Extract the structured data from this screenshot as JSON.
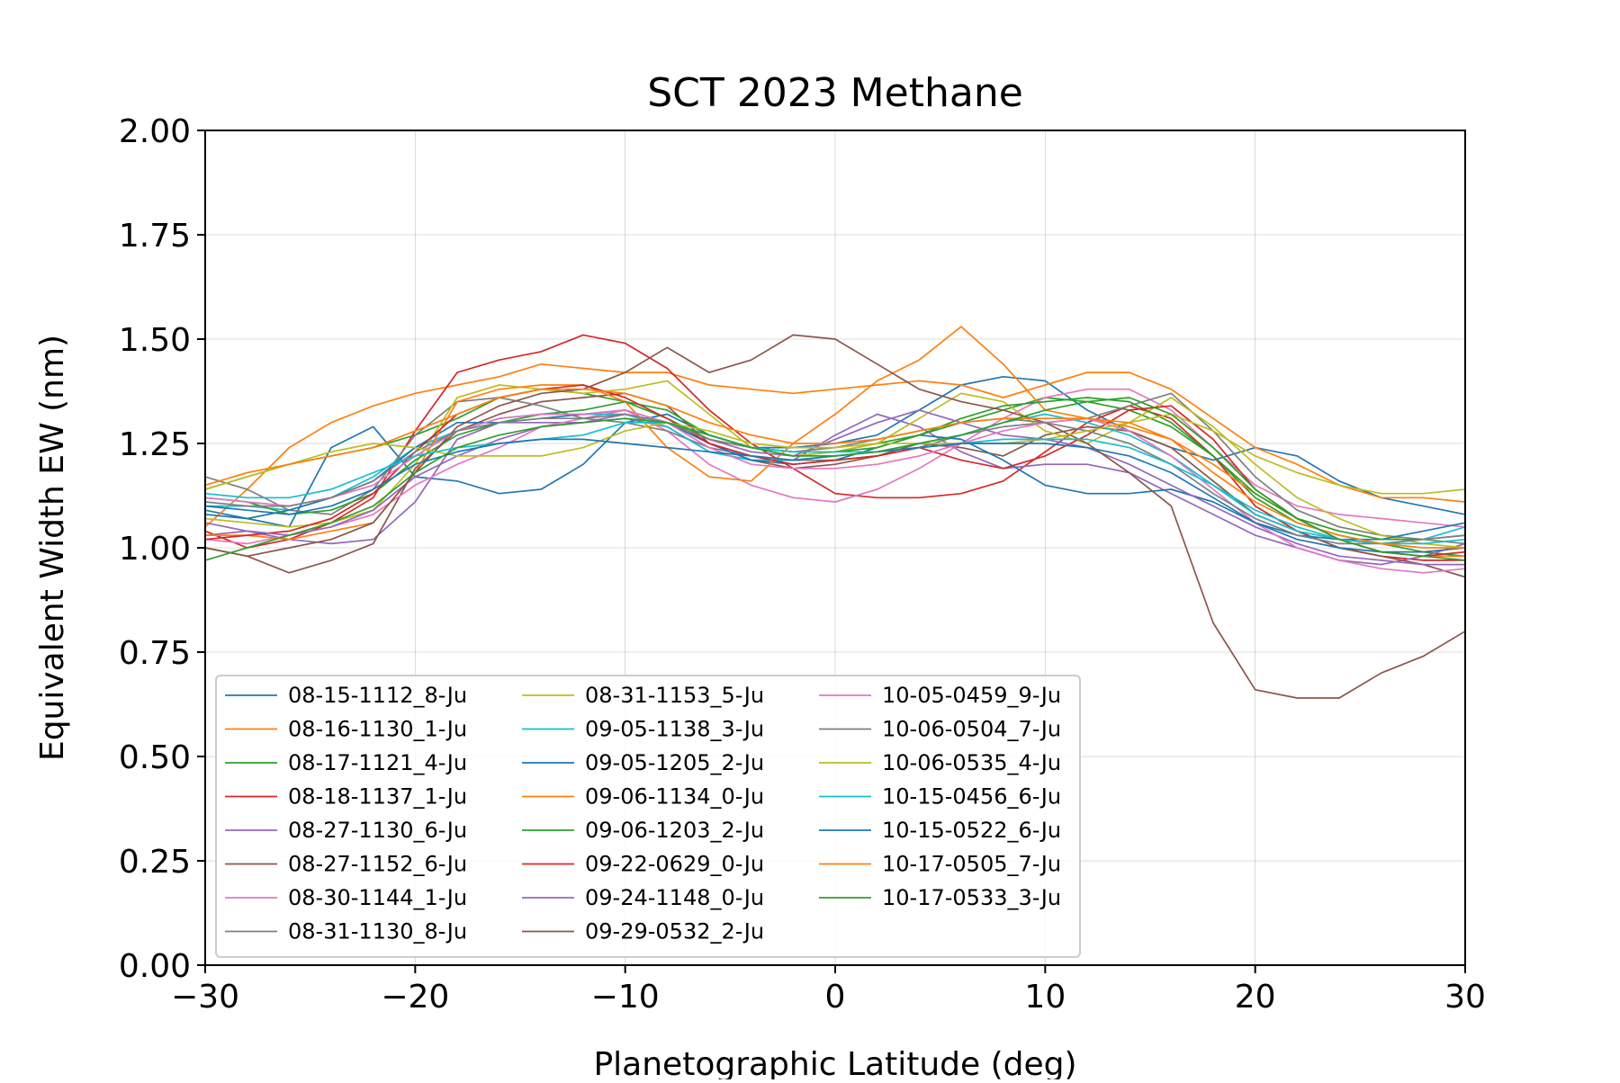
{
  "chart_data": {
    "type": "line",
    "title": "SCT 2023 Methane",
    "xlabel": "Planetographic Latitude (deg)",
    "ylabel": "Equivalent Width EW (nm)",
    "xlim": [
      -30,
      30
    ],
    "ylim": [
      0.0,
      2.0
    ],
    "xticks": [
      -30,
      -20,
      -10,
      0,
      10,
      20,
      30
    ],
    "xtick_labels": [
      "−30",
      "−20",
      "−10",
      "0",
      "10",
      "20",
      "30"
    ],
    "yticks": [
      0.0,
      0.25,
      0.5,
      0.75,
      1.0,
      1.25,
      1.5,
      1.75,
      2.0
    ],
    "ytick_labels": [
      "0.00",
      "0.25",
      "0.50",
      "0.75",
      "1.00",
      "1.25",
      "1.50",
      "1.75",
      "2.00"
    ],
    "grid": true,
    "legend_position": "lower-left",
    "legend_columns": 3,
    "x": [
      -30,
      -28,
      -26,
      -24,
      -22,
      -20,
      -18,
      -16,
      -14,
      -12,
      -10,
      -8,
      -6,
      -4,
      -2,
      0,
      2,
      4,
      6,
      8,
      10,
      12,
      14,
      16,
      18,
      20,
      22,
      24,
      26,
      28,
      30
    ],
    "series": [
      {
        "name": "08-15-1112_8-Ju",
        "color": "#1f77b4",
        "values": [
          1.09,
          1.07,
          1.05,
          1.24,
          1.29,
          1.17,
          1.16,
          1.13,
          1.14,
          1.2,
          1.3,
          1.32,
          1.27,
          1.24,
          1.24,
          1.25,
          1.27,
          1.33,
          1.39,
          1.41,
          1.4,
          1.33,
          1.28,
          1.24,
          1.21,
          1.24,
          1.22,
          1.16,
          1.12,
          1.1,
          1.08
        ]
      },
      {
        "name": "08-16-1130_1-Ju",
        "color": "#ff7f0e",
        "values": [
          1.05,
          1.14,
          1.24,
          1.3,
          1.34,
          1.37,
          1.39,
          1.41,
          1.44,
          1.43,
          1.42,
          1.42,
          1.39,
          1.38,
          1.37,
          1.38,
          1.39,
          1.4,
          1.39,
          1.36,
          1.39,
          1.42,
          1.42,
          1.38,
          1.31,
          1.24,
          1.2,
          1.15,
          1.12,
          1.12,
          1.11
        ]
      },
      {
        "name": "08-17-1121_4-Ju",
        "color": "#2ca02c",
        "values": [
          1.14,
          1.17,
          1.2,
          1.22,
          1.24,
          1.27,
          1.31,
          1.36,
          1.38,
          1.37,
          1.35,
          1.31,
          1.26,
          1.24,
          1.22,
          1.23,
          1.25,
          1.27,
          1.3,
          1.33,
          1.36,
          1.35,
          1.33,
          1.29,
          1.22,
          1.12,
          1.06,
          1.03,
          1.01,
          0.99,
          0.98
        ]
      },
      {
        "name": "08-18-1137_1-Ju",
        "color": "#d62728",
        "values": [
          1.04,
          1.0,
          1.02,
          1.06,
          1.12,
          1.28,
          1.42,
          1.45,
          1.47,
          1.51,
          1.49,
          1.43,
          1.33,
          1.25,
          1.19,
          1.13,
          1.12,
          1.12,
          1.13,
          1.16,
          1.23,
          1.3,
          1.34,
          1.31,
          1.22,
          1.1,
          1.04,
          1.0,
          0.98,
          0.97,
          0.97
        ]
      },
      {
        "name": "08-27-1130_6-Ju",
        "color": "#9467bd",
        "values": [
          1.03,
          1.04,
          1.02,
          1.01,
          1.02,
          1.11,
          1.26,
          1.3,
          1.3,
          1.3,
          1.31,
          1.29,
          1.23,
          1.21,
          1.21,
          1.27,
          1.32,
          1.29,
          1.23,
          1.19,
          1.2,
          1.2,
          1.18,
          1.13,
          1.08,
          1.03,
          1.0,
          0.97,
          0.96,
          0.98,
          1.01
        ]
      },
      {
        "name": "08-27-1152_6-Ju",
        "color": "#8c564b",
        "values": [
          1.0,
          0.98,
          0.94,
          0.97,
          1.01,
          1.19,
          1.28,
          1.32,
          1.35,
          1.36,
          1.37,
          1.34,
          1.25,
          1.21,
          1.19,
          1.2,
          1.22,
          1.25,
          1.24,
          1.22,
          1.27,
          1.29,
          1.28,
          1.24,
          1.16,
          1.08,
          1.04,
          1.0,
          0.98,
          0.96,
          0.93
        ]
      },
      {
        "name": "08-30-1144_1-Ju",
        "color": "#e377c2",
        "values": [
          1.02,
          1.01,
          1.03,
          1.05,
          1.08,
          1.15,
          1.2,
          1.24,
          1.29,
          1.31,
          1.33,
          1.28,
          1.2,
          1.15,
          1.12,
          1.11,
          1.14,
          1.19,
          1.25,
          1.31,
          1.36,
          1.38,
          1.38,
          1.33,
          1.24,
          1.15,
          1.1,
          1.08,
          1.07,
          1.06,
          1.05
        ]
      },
      {
        "name": "08-31-1130_8-Ju",
        "color": "#7f7f7f",
        "values": [
          1.17,
          1.14,
          1.09,
          1.08,
          1.14,
          1.27,
          1.35,
          1.36,
          1.34,
          1.31,
          1.3,
          1.28,
          1.24,
          1.22,
          1.21,
          1.21,
          1.22,
          1.24,
          1.27,
          1.29,
          1.3,
          1.31,
          1.34,
          1.37,
          1.28,
          1.17,
          1.09,
          1.05,
          1.03,
          1.02,
          1.01
        ]
      },
      {
        "name": "08-31-1153_5-Ju",
        "color": "#bcbd22",
        "values": [
          1.07,
          1.06,
          1.05,
          1.06,
          1.09,
          1.2,
          1.36,
          1.39,
          1.38,
          1.37,
          1.38,
          1.4,
          1.32,
          1.24,
          1.22,
          1.23,
          1.25,
          1.31,
          1.37,
          1.35,
          1.28,
          1.25,
          1.3,
          1.36,
          1.29,
          1.2,
          1.12,
          1.07,
          1.03,
          1.01,
          1.0
        ]
      },
      {
        "name": "09-05-1138_3-Ju",
        "color": "#17becf",
        "values": [
          1.1,
          1.1,
          1.09,
          1.12,
          1.17,
          1.24,
          1.28,
          1.31,
          1.32,
          1.32,
          1.32,
          1.29,
          1.23,
          1.21,
          1.21,
          1.22,
          1.23,
          1.25,
          1.27,
          1.3,
          1.32,
          1.3,
          1.27,
          1.22,
          1.15,
          1.08,
          1.04,
          1.02,
          1.01,
          1.02,
          1.05
        ]
      },
      {
        "name": "09-05-1205_2-Ju",
        "color": "#1f77b4",
        "values": [
          1.08,
          1.07,
          1.09,
          1.12,
          1.16,
          1.24,
          1.3,
          1.3,
          1.31,
          1.32,
          1.33,
          1.3,
          1.25,
          1.21,
          1.2,
          1.21,
          1.24,
          1.27,
          1.26,
          1.21,
          1.15,
          1.13,
          1.13,
          1.14,
          1.11,
          1.06,
          1.03,
          1.02,
          1.02,
          1.04,
          1.06
        ]
      },
      {
        "name": "09-06-1134_0-Ju",
        "color": "#ff7f0e",
        "values": [
          1.03,
          1.03,
          1.02,
          1.04,
          1.06,
          1.18,
          1.35,
          1.38,
          1.39,
          1.39,
          1.35,
          1.24,
          1.17,
          1.16,
          1.25,
          1.32,
          1.4,
          1.45,
          1.53,
          1.44,
          1.33,
          1.31,
          1.29,
          1.26,
          1.2,
          1.13,
          1.07,
          1.02,
          0.99,
          0.98,
          0.98
        ]
      },
      {
        "name": "09-06-1203_2-Ju",
        "color": "#2ca02c",
        "values": [
          1.12,
          1.11,
          1.08,
          1.09,
          1.13,
          1.21,
          1.27,
          1.3,
          1.32,
          1.33,
          1.35,
          1.33,
          1.27,
          1.24,
          1.23,
          1.23,
          1.24,
          1.27,
          1.31,
          1.34,
          1.35,
          1.36,
          1.35,
          1.3,
          1.22,
          1.13,
          1.07,
          1.04,
          1.02,
          1.02,
          1.03
        ]
      },
      {
        "name": "09-22-0629_0-Ju",
        "color": "#d62728",
        "values": [
          1.02,
          1.03,
          1.04,
          1.07,
          1.13,
          1.23,
          1.32,
          1.36,
          1.38,
          1.39,
          1.36,
          1.31,
          1.25,
          1.22,
          1.2,
          1.21,
          1.22,
          1.24,
          1.21,
          1.19,
          1.22,
          1.27,
          1.33,
          1.34,
          1.26,
          1.14,
          1.07,
          1.02,
          0.99,
          0.98,
          0.99
        ]
      },
      {
        "name": "09-24-1148_0-Ju",
        "color": "#9467bd",
        "values": [
          1.06,
          1.04,
          1.03,
          1.05,
          1.09,
          1.17,
          1.22,
          1.26,
          1.29,
          1.3,
          1.32,
          1.3,
          1.26,
          1.23,
          1.22,
          1.26,
          1.3,
          1.33,
          1.3,
          1.27,
          1.26,
          1.24,
          1.2,
          1.15,
          1.1,
          1.05,
          1.01,
          0.98,
          0.97,
          0.96,
          0.96
        ]
      },
      {
        "name": "09-29-0532_2-Ju",
        "color": "#8c564b",
        "values": [
          1.0,
          0.98,
          1.0,
          1.02,
          1.06,
          1.18,
          1.29,
          1.34,
          1.37,
          1.38,
          1.42,
          1.48,
          1.42,
          1.45,
          1.51,
          1.5,
          1.44,
          1.38,
          1.35,
          1.33,
          1.3,
          1.25,
          1.18,
          1.1,
          0.82,
          0.66,
          0.64,
          0.64,
          0.7,
          0.74,
          0.8
        ]
      },
      {
        "name": "10-05-0459_9-Ju",
        "color": "#e377c2",
        "values": [
          1.12,
          1.11,
          1.1,
          1.12,
          1.15,
          1.22,
          1.28,
          1.31,
          1.32,
          1.32,
          1.33,
          1.3,
          1.24,
          1.2,
          1.19,
          1.19,
          1.2,
          1.22,
          1.25,
          1.28,
          1.3,
          1.31,
          1.28,
          1.22,
          1.14,
          1.06,
          1.0,
          0.97,
          0.95,
          0.94,
          0.95
        ]
      },
      {
        "name": "10-06-0504_7-Ju",
        "color": "#7f7f7f",
        "values": [
          1.11,
          1.1,
          1.1,
          1.12,
          1.16,
          1.23,
          1.28,
          1.3,
          1.31,
          1.31,
          1.32,
          1.3,
          1.26,
          1.24,
          1.23,
          1.24,
          1.26,
          1.28,
          1.3,
          1.31,
          1.3,
          1.28,
          1.25,
          1.2,
          1.13,
          1.07,
          1.03,
          1.01,
          1.01,
          1.02,
          1.03
        ]
      },
      {
        "name": "10-06-0535_4-Ju",
        "color": "#bcbd22",
        "values": [
          1.14,
          1.17,
          1.2,
          1.23,
          1.25,
          1.24,
          1.22,
          1.22,
          1.22,
          1.24,
          1.28,
          1.3,
          1.28,
          1.25,
          1.24,
          1.24,
          1.25,
          1.25,
          1.25,
          1.25,
          1.26,
          1.28,
          1.3,
          1.32,
          1.28,
          1.22,
          1.18,
          1.15,
          1.13,
          1.13,
          1.14
        ]
      },
      {
        "name": "10-15-0456_6-Ju",
        "color": "#17becf",
        "values": [
          1.13,
          1.12,
          1.12,
          1.14,
          1.18,
          1.22,
          1.24,
          1.25,
          1.26,
          1.27,
          1.3,
          1.3,
          1.27,
          1.24,
          1.23,
          1.23,
          1.23,
          1.24,
          1.25,
          1.26,
          1.26,
          1.26,
          1.24,
          1.2,
          1.15,
          1.09,
          1.05,
          1.02,
          1.01,
          1.01,
          1.02
        ]
      },
      {
        "name": "10-15-0522_6-Ju",
        "color": "#1f77b4",
        "values": [
          1.1,
          1.09,
          1.08,
          1.1,
          1.14,
          1.2,
          1.23,
          1.25,
          1.26,
          1.26,
          1.25,
          1.24,
          1.23,
          1.22,
          1.21,
          1.22,
          1.23,
          1.24,
          1.25,
          1.25,
          1.25,
          1.24,
          1.22,
          1.18,
          1.12,
          1.06,
          1.02,
          1.0,
          0.99,
          0.99,
          1.0
        ]
      },
      {
        "name": "10-17-0505_7-Ju",
        "color": "#ff7f0e",
        "values": [
          1.15,
          1.18,
          1.2,
          1.22,
          1.24,
          1.28,
          1.32,
          1.36,
          1.38,
          1.38,
          1.37,
          1.34,
          1.3,
          1.27,
          1.25,
          1.25,
          1.26,
          1.28,
          1.3,
          1.31,
          1.31,
          1.31,
          1.3,
          1.26,
          1.18,
          1.11,
          1.06,
          1.03,
          1.01,
          1.0,
          1.0
        ]
      },
      {
        "name": "10-17-0533_3-Ju",
        "color": "#2ca02c",
        "values": [
          0.97,
          1.0,
          1.03,
          1.06,
          1.1,
          1.18,
          1.24,
          1.27,
          1.29,
          1.3,
          1.31,
          1.3,
          1.27,
          1.24,
          1.22,
          1.22,
          1.23,
          1.25,
          1.27,
          1.3,
          1.33,
          1.35,
          1.36,
          1.32,
          1.24,
          1.14,
          1.07,
          1.02,
          0.99,
          0.98,
          0.97
        ]
      }
    ]
  }
}
